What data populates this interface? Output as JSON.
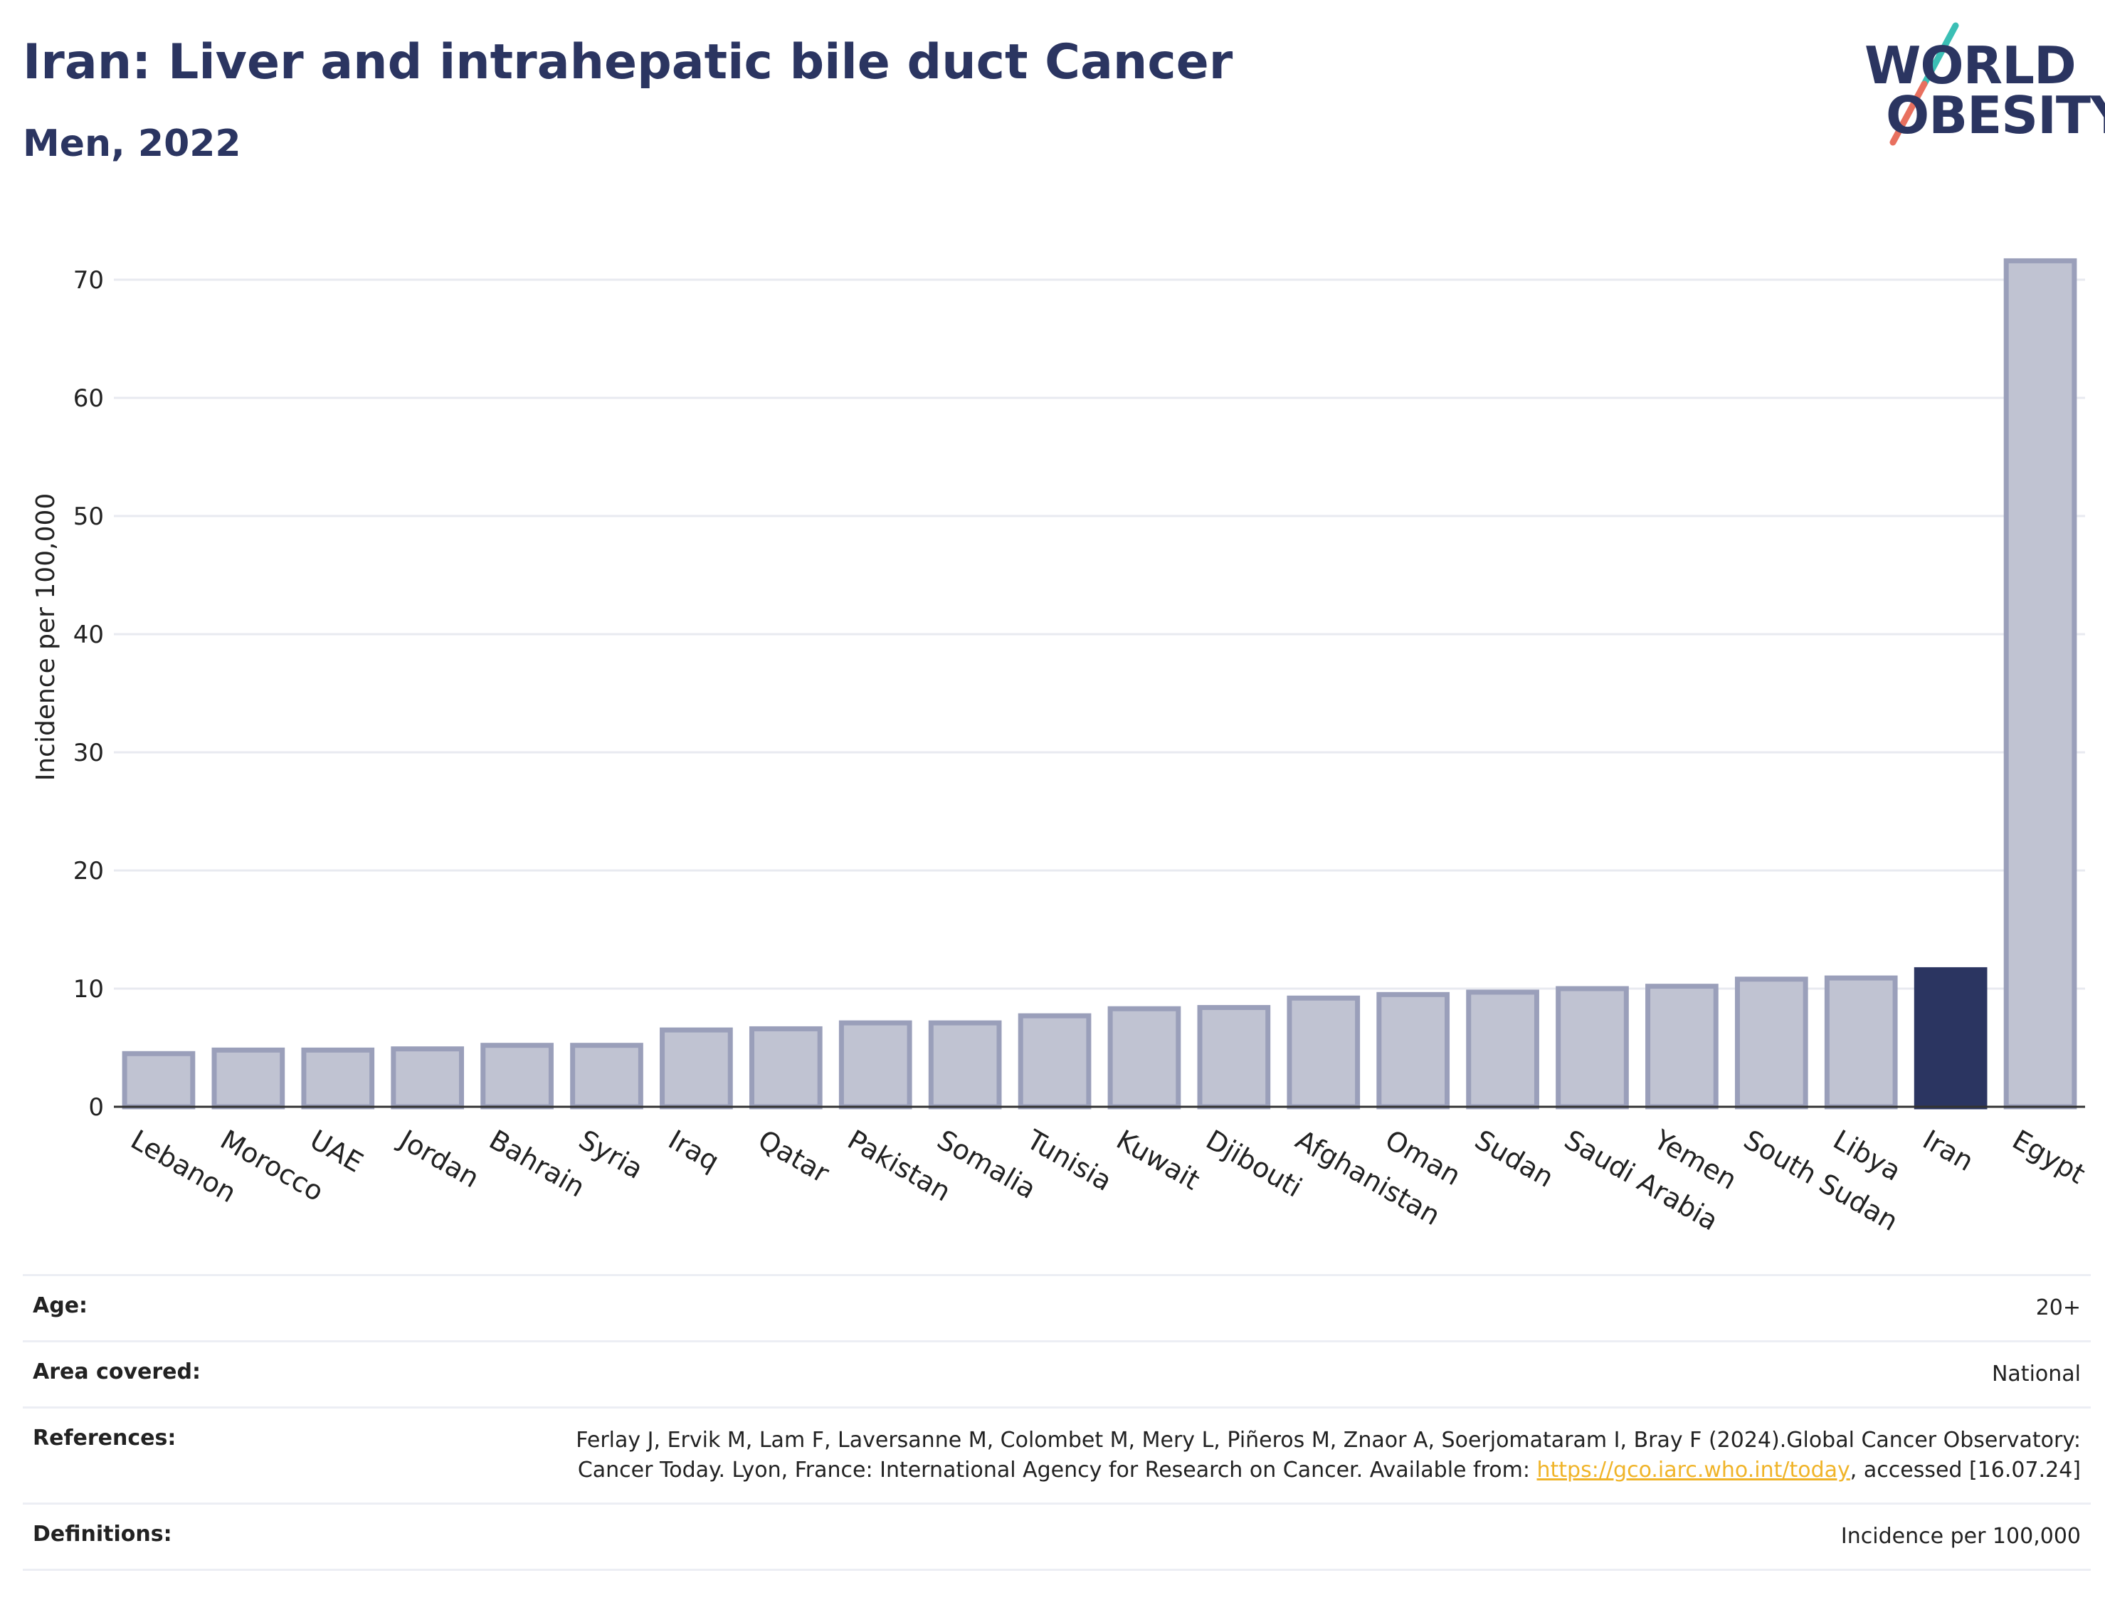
{
  "header": {
    "title": "Iran: Liver and intrahepatic bile duct Cancer",
    "subtitle": "Men, 2022"
  },
  "logo": {
    "line1": "WORLD",
    "line2": "OBESITY",
    "colors": {
      "text": "#2b3561",
      "slash_top": "#3bbfb5",
      "slash_bottom": "#e8705f"
    }
  },
  "chart_data": {
    "type": "bar",
    "ylabel": "Incidence per 100,000",
    "xlabel": "",
    "ylim": [
      0,
      75
    ],
    "yticks": [
      0,
      10,
      20,
      30,
      40,
      50,
      60,
      70
    ],
    "grid": true,
    "highlight": "Iran",
    "colors": {
      "bar": "#c0c3d2",
      "bar_border": "#9a9fba",
      "highlight": "#2b3561"
    },
    "categories": [
      "Lebanon",
      "Morocco",
      "UAE",
      "Jordan",
      "Bahrain",
      "Syria",
      "Iraq",
      "Qatar",
      "Pakistan",
      "Somalia",
      "Tunisia",
      "Kuwait",
      "Djibouti",
      "Afghanistan",
      "Oman",
      "Sudan",
      "Saudi Arabia",
      "Yemen",
      "South Sudan",
      "Libya",
      "Iran",
      "Egypt"
    ],
    "values": [
      4.5,
      4.8,
      4.8,
      4.9,
      5.2,
      5.2,
      6.5,
      6.6,
      7.1,
      7.1,
      7.7,
      8.3,
      8.4,
      9.2,
      9.5,
      9.7,
      10.0,
      10.2,
      10.8,
      10.9,
      11.6,
      71.6
    ]
  },
  "info": {
    "age": {
      "label": "Age:",
      "value": "20+"
    },
    "area": {
      "label": "Area covered:",
      "value": "National"
    },
    "references": {
      "label": "References:",
      "text_before": "Ferlay J, Ervik M, Lam F, Laversanne M, Colombet M, Mery L, Piñeros M, Znaor A, Soerjomataram I, Bray F (2024).Global Cancer Observatory: Cancer Today. Lyon, France: International Agency for Research on Cancer. Available from: ",
      "link": "https://gco.iarc.who.int/today",
      "text_after": ", accessed [16.07.24]"
    },
    "definitions": {
      "label": "Definitions:",
      "value": "Incidence per 100,000"
    }
  }
}
